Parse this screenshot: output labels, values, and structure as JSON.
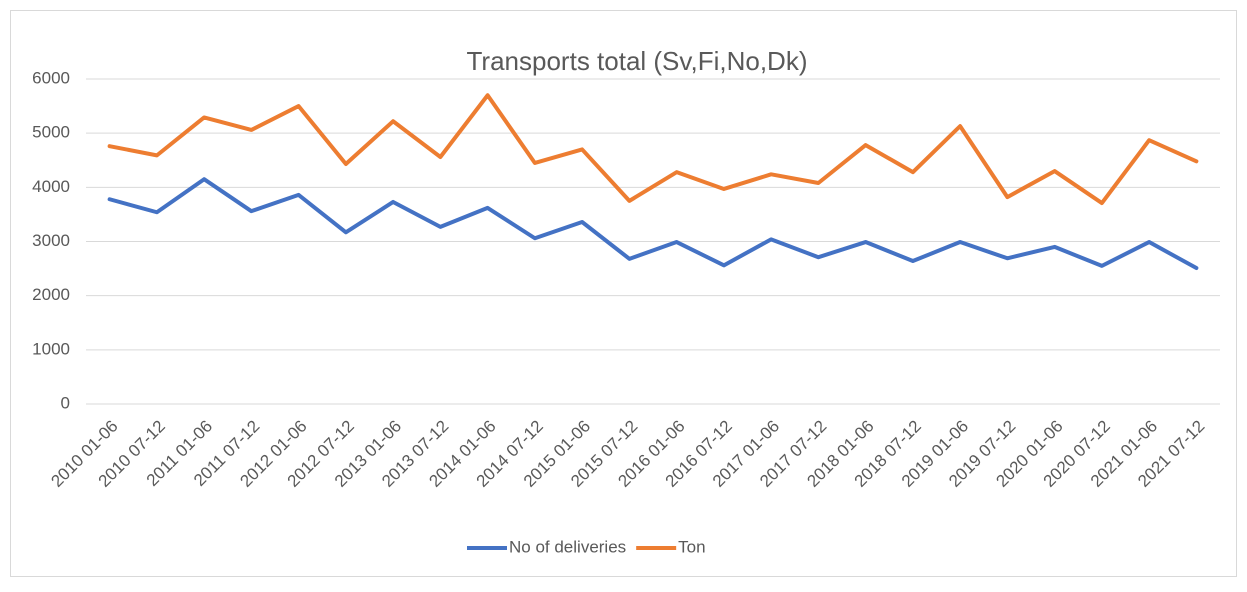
{
  "chart_data": {
    "type": "line",
    "title": "Transports  total (Sv,Fi,No,Dk)",
    "categories": [
      "2010 01-06",
      "2010 07-12",
      "2011 01-06",
      "2011 07-12",
      "2012 01-06",
      "2012 07-12",
      "2013 01-06",
      "2013 07-12",
      "2014 01-06",
      "2014 07-12",
      "2015 01-06",
      "2015 07-12",
      "2016 01-06",
      "2016 07-12",
      "2017 01-06",
      "2017 07-12",
      "2018 01-06",
      "2018 07-12",
      "2019 01-06",
      "2019 07-12",
      "2020 01-06",
      "2020 07-12",
      "2021 01-06",
      "2021 07-12"
    ],
    "series": [
      {
        "name": "No of deliveries",
        "color": "#4472c4",
        "values": [
          3780,
          3540,
          4150,
          3560,
          3860,
          3170,
          3730,
          3270,
          3620,
          3060,
          3360,
          2680,
          2990,
          2560,
          3040,
          2710,
          2990,
          2640,
          2990,
          2690,
          2900,
          2550,
          2990,
          2510
        ]
      },
      {
        "name": "Ton",
        "color": "#ed7d31",
        "values": [
          4760,
          4590,
          5290,
          5060,
          5500,
          4430,
          5220,
          4560,
          5700,
          4450,
          4700,
          3750,
          4280,
          3970,
          4240,
          4080,
          4780,
          4280,
          5130,
          3820,
          4300,
          3710,
          4870,
          4480
        ]
      }
    ],
    "ylim": [
      0,
      6000
    ],
    "yticks": [
      0,
      1000,
      2000,
      3000,
      4000,
      5000,
      6000
    ],
    "grid": true,
    "legend": "bottom"
  }
}
